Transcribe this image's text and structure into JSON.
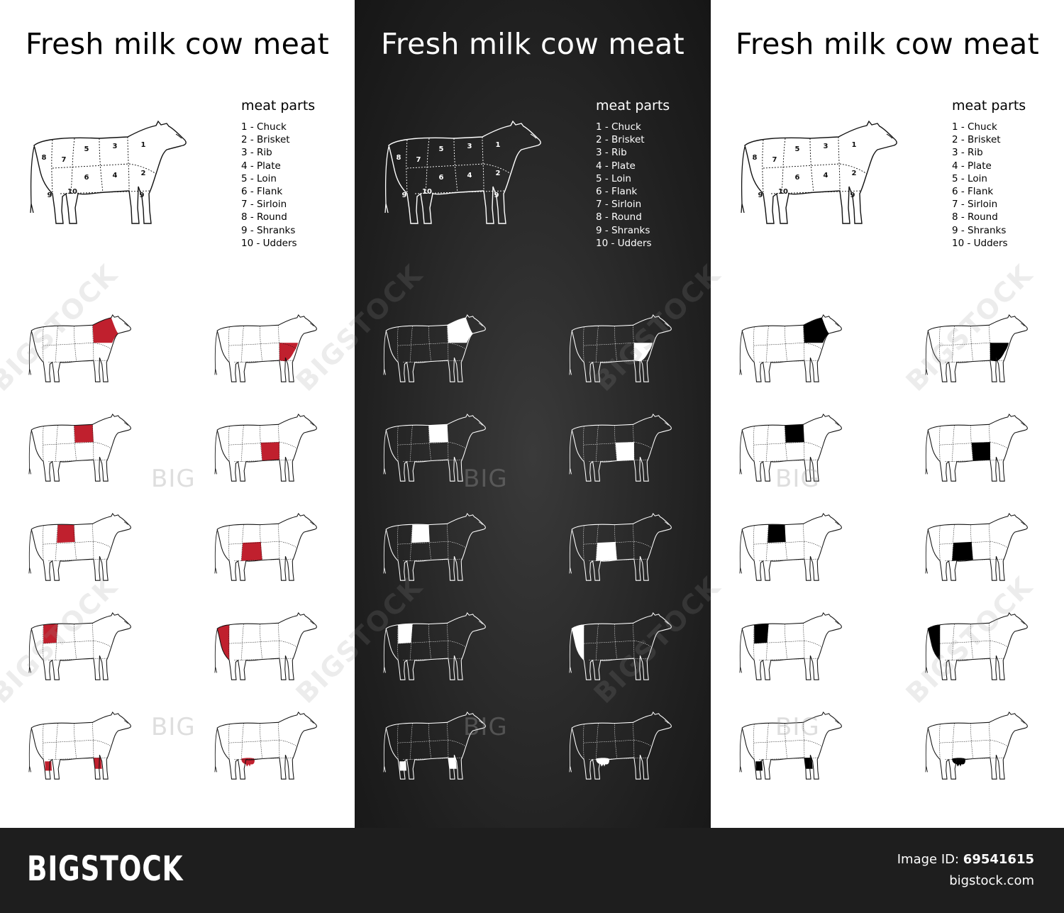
{
  "title": "Fresh milk cow meat",
  "legend_title": "meat parts",
  "legend": [
    {
      "num": "1",
      "name": "Chuck"
    },
    {
      "num": "2",
      "name": "Brisket"
    },
    {
      "num": "3",
      "name": "Rib"
    },
    {
      "num": "4",
      "name": "Plate"
    },
    {
      "num": "5",
      "name": "Loin"
    },
    {
      "num": "6",
      "name": "Flank"
    },
    {
      "num": "7",
      "name": "Sirloin"
    },
    {
      "num": "8",
      "name": "Round"
    },
    {
      "num": "9",
      "name": "Shranks"
    },
    {
      "num": "10",
      "name": "Udders"
    }
  ],
  "panels": [
    {
      "theme": "white",
      "bg": "#ffffff",
      "line": "#111111",
      "highlight": "#c0202e"
    },
    {
      "theme": "dark",
      "bg": "#222222",
      "line": "#ffffff",
      "highlight": "#ffffff"
    },
    {
      "theme": "white",
      "bg": "#ffffff",
      "line": "#111111",
      "highlight": "#000000"
    }
  ],
  "grid_order": [
    "Chuck",
    "Brisket",
    "Rib",
    "Plate",
    "Loin",
    "Flank",
    "Round",
    "Sirloin",
    "Shranks",
    "Udders"
  ],
  "watermark_text": "BIGSTOCK",
  "big_mark": "BIG",
  "footer": {
    "logo": "BIGSTOCK",
    "image_id_label": "Image ID:",
    "image_id": "69541615",
    "site": "bigstock.com"
  }
}
